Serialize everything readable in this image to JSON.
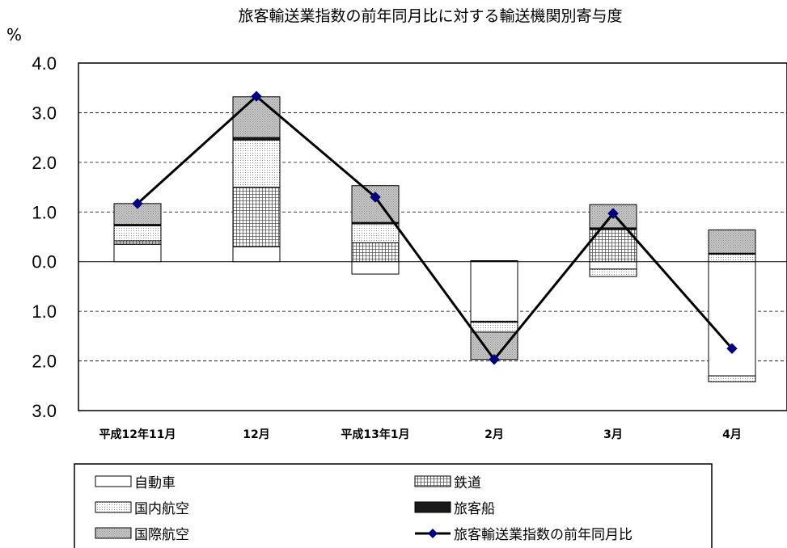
{
  "chart_data": {
    "type": "bar",
    "stacked": true,
    "title": "旅客輸送業指数の前年同月比に対する輸送機関別寄与度",
    "unit_label": "%",
    "ylim": [
      -3,
      4
    ],
    "yticks": [
      4,
      3,
      2,
      1,
      0,
      -1,
      -2,
      -3
    ],
    "ytick_labels": [
      "4.0",
      "3.0",
      "2.0",
      "1.0",
      "0.0",
      "1.0",
      "2.0",
      "3.0"
    ],
    "grid": "dashed horizontal",
    "legend_position": "bottom",
    "categories": [
      "平成12年11月",
      "12月",
      "平成13年1月",
      "2月",
      "3月",
      "4月"
    ],
    "series": [
      {
        "name": "自動車",
        "values": [
          0.35,
          0.3,
          -0.25,
          -1.2,
          -0.15,
          -2.3
        ],
        "pattern": "white"
      },
      {
        "name": "鉄道",
        "values": [
          0.07,
          1.2,
          0.38,
          -0.02,
          0.65,
          0.0
        ],
        "pattern": "hatch"
      },
      {
        "name": "国内航空",
        "values": [
          0.3,
          0.95,
          0.38,
          -0.2,
          0.0,
          0.15
        ],
        "pattern": "dots"
      },
      {
        "name": "旅客船",
        "values": [
          0.03,
          0.05,
          0.03,
          0.02,
          0.03,
          0.02
        ],
        "pattern": "black"
      },
      {
        "name": "国際航空",
        "values": [
          0.42,
          0.82,
          0.74,
          -0.55,
          0.47,
          0.47
        ],
        "pattern": "gray"
      }
    ],
    "negatives": [
      {
        "series": "国内航空",
        "values": [
          0,
          0,
          0,
          0,
          -0.15,
          -0.12
        ]
      }
    ],
    "line": {
      "name": "旅客輸送業指数の前年同月比",
      "values": [
        1.17,
        3.33,
        1.3,
        -1.97,
        0.97,
        -1.75
      ],
      "color": "#000080"
    }
  }
}
